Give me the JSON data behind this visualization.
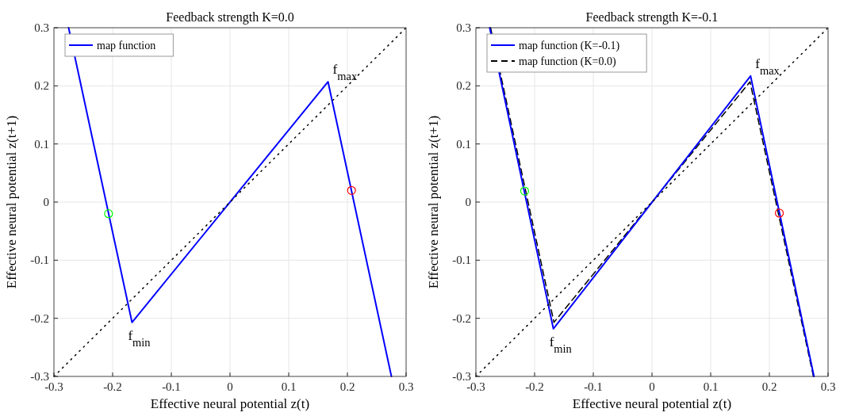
{
  "chart_data": [
    {
      "type": "line",
      "title": "Feedback strength K=0.0",
      "xlabel": "Effective neural potential z(t)",
      "ylabel": "Effective neural potential z(t+1)",
      "xlim": [
        -0.3,
        0.3
      ],
      "ylim": [
        -0.3,
        0.3
      ],
      "xticks": [
        -0.3,
        -0.2,
        -0.1,
        0,
        0.1,
        0.2,
        0.3
      ],
      "yticks": [
        -0.3,
        -0.2,
        -0.1,
        0,
        0.1,
        0.2,
        0.3
      ],
      "grid": true,
      "legend": "top left",
      "series": [
        {
          "name": "map function",
          "color": "#0000ff",
          "x": [
            -0.275,
            -0.167,
            0.167,
            0.275
          ],
          "values": [
            0.3,
            -0.207,
            0.207,
            -0.3
          ],
          "line_style": "solid"
        },
        {
          "type": "line",
          "color": "#000000",
          "x": [
            -0.3,
            0.3
          ],
          "values": [
            -0.3,
            0.3
          ],
          "line_style": "dotted"
        },
        {
          "type": "scatter",
          "color": "#00ff00",
          "x": [
            -0.207
          ],
          "values": [
            -0.02
          ],
          "marker": "circle"
        },
        {
          "type": "scatter",
          "color": "#ff0000",
          "x": [
            0.207
          ],
          "values": [
            0.02
          ],
          "marker": "circle"
        }
      ],
      "annotations": [
        {
          "text": "f$_{min}$",
          "x": -0.167,
          "y": -0.207
        },
        {
          "text": "f$_{max}$",
          "x": 0.167,
          "y": 0.207
        }
      ]
    },
    {
      "type": "line",
      "title": "Feedback strength K=-0.1",
      "xlabel": "Effective neural potential z(t)",
      "ylabel": "Effective neural potential z(t+1)",
      "xlim": [
        -0.3,
        0.3
      ],
      "ylim": [
        -0.3,
        0.3
      ],
      "xticks": [
        -0.3,
        -0.2,
        -0.1,
        0,
        0.1,
        0.2,
        0.3
      ],
      "yticks": [
        -0.3,
        -0.2,
        -0.1,
        0,
        0.1,
        0.2,
        0.3
      ],
      "grid": true,
      "legend": "top left",
      "series": [
        {
          "name": "map function (K=0.0)",
          "color": "#000000",
          "x": [
            -0.275,
            -0.167,
            0.167,
            0.275
          ],
          "values": [
            0.3,
            -0.207,
            0.207,
            -0.3
          ],
          "line_style": "dashed"
        },
        {
          "name": "map function (K=-0.1)",
          "color": "#0000ff",
          "x": [
            -0.2765,
            -0.168,
            0.168,
            0.276
          ],
          "values": [
            0.3,
            -0.218,
            0.217,
            -0.3
          ],
          "line_style": "solid"
        },
        {
          "type": "line",
          "color": "#000000",
          "x": [
            -0.3,
            0.3
          ],
          "values": [
            -0.3,
            0.3
          ],
          "line_style": "dotted"
        },
        {
          "type": "scatter",
          "color": "#00ff00",
          "x": [
            -0.217
          ],
          "values": [
            0.019
          ],
          "marker": "circle"
        },
        {
          "type": "scatter",
          "color": "#ff0000",
          "x": [
            0.217
          ],
          "values": [
            -0.019
          ],
          "marker": "circle"
        }
      ],
      "annotations": [
        {
          "text": "f$_{min}$",
          "x": -0.168,
          "y": -0.218
        },
        {
          "text": "f$_{max}$",
          "x": 0.168,
          "y": 0.217
        }
      ]
    }
  ]
}
